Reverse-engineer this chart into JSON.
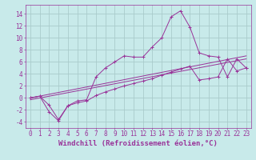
{
  "xlabel": "Windchill (Refroidissement éolien,°C)",
  "ylabel": "",
  "bg_color": "#c8eaea",
  "line_color": "#993399",
  "grid_color": "#aacccc",
  "xlim": [
    -0.5,
    23.5
  ],
  "ylim": [
    -5,
    15.5
  ],
  "xticks": [
    0,
    1,
    2,
    3,
    4,
    5,
    6,
    7,
    8,
    9,
    10,
    11,
    12,
    13,
    14,
    15,
    16,
    17,
    18,
    19,
    20,
    21,
    22,
    23
  ],
  "yticks": [
    -4,
    -2,
    0,
    2,
    4,
    6,
    8,
    10,
    12,
    14
  ],
  "series1_x": [
    0,
    1,
    2,
    3,
    4,
    5,
    6,
    7,
    8,
    9,
    10,
    11,
    12,
    13,
    14,
    15,
    16,
    17,
    18,
    19,
    20,
    21,
    22,
    23
  ],
  "series1_y": [
    0.0,
    0.3,
    -1.2,
    -3.6,
    -1.3,
    -0.8,
    -0.5,
    0.4,
    1.0,
    1.5,
    2.0,
    2.4,
    2.8,
    3.2,
    3.8,
    4.3,
    4.8,
    5.3,
    3.0,
    3.2,
    3.5,
    6.5,
    4.5,
    5.0
  ],
  "series2_x": [
    0,
    1,
    2,
    3,
    4,
    5,
    6,
    7,
    8,
    9,
    10,
    11,
    12,
    13,
    14,
    15,
    16,
    17,
    18,
    19,
    20,
    21,
    22,
    23
  ],
  "series2_y": [
    0.0,
    0.3,
    -2.3,
    -3.8,
    -1.3,
    -0.5,
    -0.3,
    3.5,
    5.0,
    6.0,
    7.0,
    6.8,
    6.8,
    8.5,
    10.0,
    13.5,
    14.5,
    11.8,
    7.5,
    7.0,
    6.8,
    3.5,
    6.5,
    5.0
  ],
  "series3_x": [
    0,
    23
  ],
  "series3_y": [
    0.0,
    7.0
  ],
  "series4_x": [
    0,
    23
  ],
  "series4_y": [
    -0.3,
    6.5
  ],
  "xlabel_fontsize": 6.5,
  "tick_fontsize": 5.5
}
